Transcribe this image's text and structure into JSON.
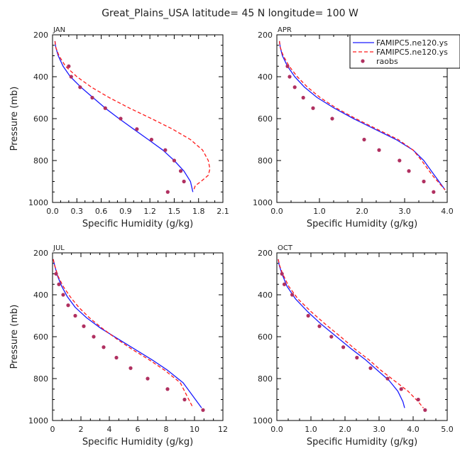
{
  "figure": {
    "title": "Great_Plains_USA  latitude= 45 N longitude= 100 W"
  },
  "legend": {
    "entries": [
      {
        "label": "FAMIPC5.ne120.ys",
        "color": "#1a1aff",
        "style": "solid"
      },
      {
        "label": "FAMIPC5.ne120.ys",
        "color": "#ff1a1a",
        "style": "dashed"
      },
      {
        "label": "raobs",
        "color": "#b03060",
        "style": "marker"
      }
    ]
  },
  "colors": {
    "model_a": "#1a1aff",
    "model_b": "#ff1a1a",
    "raobs": "#b03060"
  },
  "chart_data": [
    {
      "type": "line",
      "panel": "JAN",
      "xlabel": "Specific Humidity (g/kg)",
      "ylabel": "Pressure (mb)",
      "xlim": [
        0,
        2.1
      ],
      "ylim": [
        1000,
        200
      ],
      "xticks": [
        "0.0",
        "0.3",
        "0.6",
        "0.9",
        "1.2",
        "1.5",
        "1.8",
        "2.1"
      ],
      "xtick_values": [
        0,
        0.3,
        0.6,
        0.9,
        1.2,
        1.5,
        1.8,
        2.1
      ],
      "yticks": [
        "200",
        "400",
        "600",
        "800",
        "1000"
      ],
      "ytick_values": [
        200,
        400,
        600,
        800,
        1000
      ],
      "series": [
        {
          "name": "FAMIPC5.ne120.ys",
          "style": "solid",
          "color": "#1a1aff",
          "x": [
            0.03,
            0.04,
            0.07,
            0.13,
            0.22,
            0.35,
            0.5,
            0.65,
            0.82,
            1.0,
            1.18,
            1.36,
            1.5,
            1.62,
            1.7,
            1.73
          ],
          "y": [
            230,
            260,
            300,
            350,
            400,
            450,
            500,
            550,
            600,
            650,
            700,
            750,
            800,
            850,
            900,
            950
          ]
        },
        {
          "name": "FAMIPC5.ne120.ys",
          "style": "dashed",
          "color": "#ff1a1a",
          "x": [
            0.03,
            0.04,
            0.08,
            0.16,
            0.3,
            0.48,
            0.7,
            0.95,
            1.22,
            1.48,
            1.7,
            1.85,
            1.92,
            1.94,
            1.92,
            1.83,
            1.76,
            1.74
          ],
          "y": [
            230,
            260,
            300,
            350,
            400,
            450,
            500,
            550,
            600,
            650,
            700,
            750,
            800,
            840,
            870,
            900,
            920,
            940
          ]
        },
        {
          "name": "raobs",
          "style": "marker",
          "color": "#b03060",
          "x": [
            0.2,
            0.23,
            0.34,
            0.49,
            0.65,
            0.84,
            1.04,
            1.22,
            1.39,
            1.5,
            1.58,
            1.62,
            1.42
          ],
          "y": [
            350,
            400,
            450,
            500,
            550,
            600,
            650,
            700,
            750,
            800,
            850,
            900,
            950
          ]
        }
      ]
    },
    {
      "type": "line",
      "panel": "APR",
      "xlabel": "Specific Humidity (g/kg)",
      "ylabel": "",
      "xlim": [
        0,
        4
      ],
      "ylim": [
        1000,
        200
      ],
      "xticks": [
        "0.0",
        "1.0",
        "2.0",
        "3.0",
        "4.0"
      ],
      "xtick_values": [
        0,
        1,
        2,
        3,
        4
      ],
      "yticks": [
        "200",
        "400",
        "600",
        "800",
        "1000"
      ],
      "ytick_values": [
        200,
        400,
        600,
        800,
        1000
      ],
      "series": [
        {
          "name": "FAMIPC5.ne120.ys",
          "style": "solid",
          "color": "#1a1aff",
          "x": [
            0.06,
            0.08,
            0.13,
            0.25,
            0.42,
            0.65,
            0.95,
            1.35,
            1.8,
            2.3,
            2.8,
            3.2,
            3.45,
            3.7,
            3.95
          ],
          "y": [
            230,
            260,
            300,
            350,
            400,
            450,
            500,
            550,
            600,
            650,
            700,
            750,
            800,
            870,
            940
          ]
        },
        {
          "name": "FAMIPC5.ne120.ys",
          "style": "dashed",
          "color": "#ff1a1a",
          "x": [
            0.06,
            0.08,
            0.15,
            0.29,
            0.48,
            0.72,
            1.02,
            1.4,
            1.85,
            2.35,
            2.85,
            3.2,
            3.4,
            3.65,
            3.95
          ],
          "y": [
            230,
            260,
            300,
            350,
            400,
            450,
            500,
            550,
            600,
            650,
            700,
            750,
            800,
            870,
            940
          ]
        },
        {
          "name": "raobs",
          "style": "marker",
          "color": "#b03060",
          "x": [
            0.25,
            0.3,
            0.42,
            0.62,
            0.85,
            1.3,
            2.05,
            2.4,
            2.88,
            3.1,
            3.45,
            3.68
          ],
          "y": [
            350,
            400,
            450,
            500,
            550,
            600,
            700,
            750,
            800,
            850,
            900,
            950
          ]
        }
      ]
    },
    {
      "type": "line",
      "panel": "JUL",
      "xlabel": "Specific Humidity (g/kg)",
      "ylabel": "Pressure (mb)",
      "xlim": [
        0,
        12
      ],
      "ylim": [
        1000,
        200
      ],
      "xticks": [
        "0",
        "2",
        "4",
        "6",
        "8",
        "10",
        "12"
      ],
      "xtick_values": [
        0,
        2,
        4,
        6,
        8,
        10,
        12
      ],
      "yticks": [
        "200",
        "400",
        "600",
        "800",
        "1000"
      ],
      "ytick_values": [
        200,
        400,
        600,
        800,
        1000
      ],
      "series": [
        {
          "name": "FAMIPC5.ne120.ys",
          "style": "solid",
          "color": "#1a1aff",
          "x": [
            0.05,
            0.15,
            0.35,
            0.65,
            1.05,
            1.6,
            2.4,
            3.4,
            4.6,
            5.8,
            7.0,
            8.1,
            9.2,
            10.5
          ],
          "y": [
            230,
            260,
            310,
            360,
            410,
            460,
            510,
            560,
            610,
            660,
            710,
            760,
            820,
            940
          ]
        },
        {
          "name": "FAMIPC5.ne120.ys",
          "style": "dashed",
          "color": "#ff1a1a",
          "x": [
            0.05,
            0.15,
            0.38,
            0.75,
            1.25,
            1.85,
            2.6,
            3.5,
            4.5,
            5.6,
            6.8,
            7.9,
            9.0,
            9.9
          ],
          "y": [
            230,
            260,
            310,
            360,
            410,
            460,
            510,
            560,
            610,
            660,
            710,
            760,
            820,
            940
          ]
        },
        {
          "name": "raobs",
          "style": "marker",
          "color": "#b03060",
          "x": [
            0.25,
            0.45,
            0.75,
            1.1,
            1.6,
            2.2,
            2.9,
            3.6,
            4.5,
            5.5,
            6.7,
            8.1,
            9.3,
            10.6
          ],
          "y": [
            300,
            350,
            400,
            450,
            500,
            550,
            600,
            650,
            700,
            750,
            800,
            850,
            900,
            950
          ]
        }
      ]
    },
    {
      "type": "line",
      "panel": "OCT",
      "xlabel": "Specific Humidity (g/kg)",
      "ylabel": "",
      "xlim": [
        0,
        5
      ],
      "ylim": [
        1000,
        200
      ],
      "xticks": [
        "0.0",
        "1.0",
        "2.0",
        "3.0",
        "4.0",
        "5.0"
      ],
      "xtick_values": [
        0,
        1,
        2,
        3,
        4,
        5
      ],
      "yticks": [
        "200",
        "400",
        "600",
        "800",
        "1000"
      ],
      "ytick_values": [
        200,
        400,
        600,
        800,
        1000
      ],
      "series": [
        {
          "name": "FAMIPC5.ne120.ys",
          "style": "solid",
          "color": "#1a1aff",
          "x": [
            0.04,
            0.07,
            0.15,
            0.3,
            0.55,
            0.9,
            1.3,
            1.75,
            2.2,
            2.6,
            2.95,
            3.3,
            3.55,
            3.7,
            3.75
          ],
          "y": [
            230,
            260,
            300,
            360,
            420,
            480,
            540,
            600,
            660,
            710,
            760,
            810,
            860,
            910,
            940
          ]
        },
        {
          "name": "FAMIPC5.ne120.ys",
          "style": "dashed",
          "color": "#ff1a1a",
          "x": [
            0.04,
            0.08,
            0.17,
            0.35,
            0.62,
            1.0,
            1.42,
            1.87,
            2.3,
            2.7,
            3.05,
            3.45,
            3.85,
            4.15,
            4.3
          ],
          "y": [
            230,
            260,
            300,
            360,
            420,
            480,
            540,
            600,
            660,
            710,
            760,
            810,
            860,
            910,
            940
          ]
        },
        {
          "name": "raobs",
          "style": "marker",
          "color": "#b03060",
          "x": [
            0.15,
            0.22,
            0.45,
            0.92,
            1.25,
            1.6,
            1.95,
            2.35,
            2.75,
            3.25,
            3.65,
            4.15,
            4.35
          ],
          "y": [
            300,
            350,
            400,
            500,
            550,
            600,
            650,
            700,
            750,
            800,
            850,
            900,
            950
          ]
        }
      ]
    }
  ]
}
